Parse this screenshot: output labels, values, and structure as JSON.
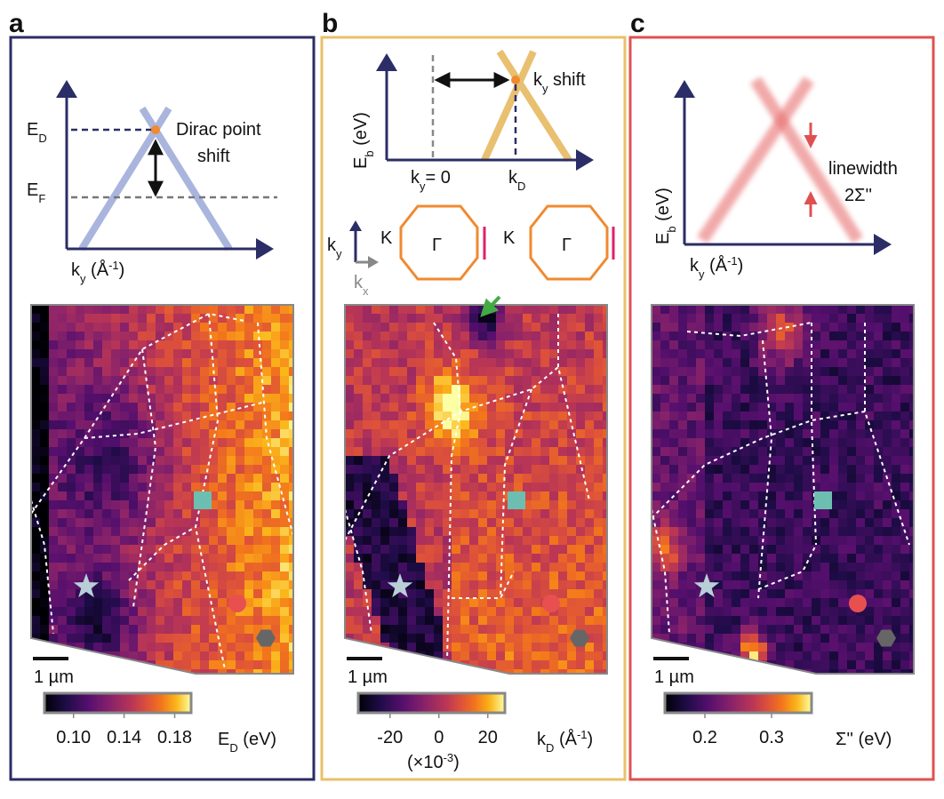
{
  "panels": [
    {
      "letter": "a",
      "schematic": {
        "ed": [
          "E",
          "D"
        ],
        "ef": [
          "E",
          "F"
        ],
        "note": [
          "Dirac point",
          "shift"
        ],
        "xaxis": [
          "k",
          "y",
          " (Å",
          "-1",
          ")"
        ]
      },
      "scale_bar": "1 µm",
      "colorbar": {
        "clim": [
          0.077,
          0.193
        ],
        "ticks": [
          {
            "value": 0.1,
            "label": "0.10"
          },
          {
            "value": 0.14,
            "label": "0.14"
          },
          {
            "value": 0.18,
            "label": "0.18"
          }
        ],
        "label": [
          "E",
          "D",
          " (eV)"
        ]
      }
    },
    {
      "letter": "b",
      "schematic": {
        "yaxis": [
          "E",
          "b",
          " (eV)"
        ],
        "shift": [
          "k",
          "y",
          " shift"
        ],
        "k0": [
          "k",
          "y",
          "= 0"
        ],
        "kd": [
          "k",
          "D"
        ],
        "ky": [
          "k",
          "y"
        ],
        "kx": [
          "k",
          "x"
        ],
        "bz": [
          {
            "k": "K",
            "g": "Γ"
          },
          {
            "k": "K",
            "g": "Γ"
          }
        ]
      },
      "scale_bar": "1 µm",
      "colorbar": {
        "clim": [
          -33,
          27
        ],
        "ticks": [
          -20,
          0,
          20
        ],
        "multiplier": [
          "(×10",
          "-3",
          ")"
        ],
        "label": [
          "k",
          "D",
          " (Å",
          "-1",
          ")"
        ]
      }
    },
    {
      "letter": "c",
      "schematic": {
        "yaxis": [
          "E",
          "b",
          " (eV)"
        ],
        "note": [
          "linewidth",
          "2Σ''"
        ],
        "xaxis": [
          "k",
          "y",
          " (Å",
          "-1",
          ")"
        ]
      },
      "scale_bar": "1 µm",
      "colorbar": {
        "clim": [
          0.14,
          0.36
        ],
        "ticks": [
          0.2,
          0.3
        ],
        "label": "Σ'' (eV)"
      }
    }
  ]
}
